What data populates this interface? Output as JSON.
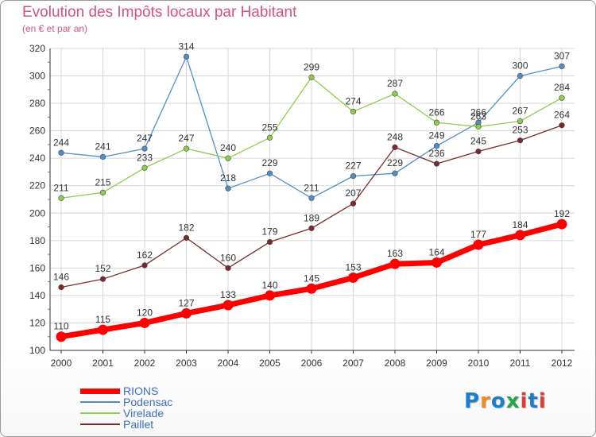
{
  "title": "Evolution des Impôts locaux par Habitant",
  "subtitle": "(en € et par an)",
  "logo_text": "Proxiti",
  "logo_colors": [
    "#1e7fc8",
    "#f08a1e",
    "#1e7fc8",
    "#2aa34a",
    "#e23a3a",
    "#1e7fc8",
    "#e23a3a"
  ],
  "chart_data": {
    "type": "line",
    "title": "Evolution des Impôts locaux par Habitant",
    "subtitle": "(en € et par an)",
    "xlabel": "",
    "ylabel": "",
    "x": [
      "2000",
      "2001",
      "2002",
      "2003",
      "2004",
      "2005",
      "2006",
      "2007",
      "2008",
      "2009",
      "2010",
      "2011",
      "2012"
    ],
    "ylim": [
      100,
      320
    ],
    "yticks": [
      100,
      120,
      140,
      160,
      180,
      200,
      220,
      240,
      260,
      280,
      300,
      320
    ],
    "grid": true,
    "legend_position": "bottom-left",
    "series": [
      {
        "name": "RIONS",
        "color": "#ff0000",
        "values": [
          110,
          115,
          120,
          127,
          133,
          140,
          145,
          153,
          163,
          164,
          177,
          184,
          192
        ]
      },
      {
        "name": "Podensac",
        "color": "#4f8fc9",
        "values": [
          244,
          241,
          247,
          314,
          218,
          229,
          211,
          227,
          229,
          249,
          266,
          300,
          307
        ]
      },
      {
        "name": "Virelade",
        "color": "#8ccf4c",
        "values": [
          211,
          215,
          233,
          247,
          240,
          255,
          299,
          274,
          287,
          266,
          263,
          267,
          284
        ]
      },
      {
        "name": "Paillet",
        "color": "#7a2a2a",
        "values": [
          146,
          152,
          162,
          182,
          160,
          179,
          189,
          207,
          248,
          236,
          245,
          253,
          264
        ]
      }
    ]
  }
}
